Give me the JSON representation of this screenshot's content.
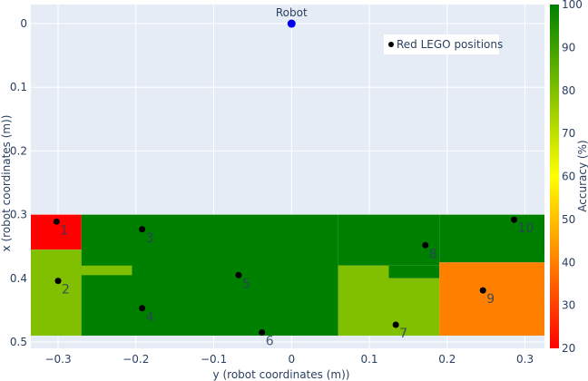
{
  "chart_data": {
    "type": "heatmap",
    "title": "",
    "xlabel": "y (robot coordinates (m))",
    "ylabel": "x (robot coordinates (m))",
    "xlim": [
      -0.335,
      0.325
    ],
    "ylim": [
      -0.03,
      0.51
    ],
    "y_reversed": true,
    "grid": true,
    "x_ticks": [
      -0.3,
      -0.2,
      -0.1,
      0,
      0.1,
      0.2,
      0.3
    ],
    "x_tick_labels": [
      "−0.3",
      "−0.2",
      "−0.1",
      "0",
      "0.1",
      "0.2",
      "0.3"
    ],
    "y_ticks": [
      0,
      0.1,
      0.2,
      0.3,
      0.4,
      0.5
    ],
    "y_tick_labels": [
      "0",
      "0.1",
      "0.2",
      "0.3",
      "0.4",
      "0.5"
    ],
    "colorbar": {
      "title": "Accuracy (%)",
      "min": 20,
      "max": 100,
      "ticks": [
        20,
        30,
        40,
        50,
        60,
        70,
        80,
        90,
        100
      ],
      "colors": [
        "#ff0000",
        "#ffff00",
        "#008000"
      ]
    },
    "regions": [
      {
        "y0": -0.335,
        "y1": -0.27,
        "x0": 0.3,
        "x1": 0.355,
        "accuracy": 20
      },
      {
        "y0": -0.335,
        "y1": -0.27,
        "x0": 0.355,
        "x1": 0.49,
        "accuracy": 80
      },
      {
        "y0": -0.27,
        "y1": 0.06,
        "x0": 0.3,
        "x1": 0.49,
        "accuracy": 100
      },
      {
        "y0": -0.27,
        "y1": -0.205,
        "x0": 0.38,
        "x1": 0.395,
        "accuracy": 80
      },
      {
        "y0": 0.06,
        "y1": 0.19,
        "x0": 0.3,
        "x1": 0.38,
        "accuracy": 100
      },
      {
        "y0": 0.06,
        "y1": 0.125,
        "x0": 0.38,
        "x1": 0.49,
        "accuracy": 80
      },
      {
        "y0": 0.125,
        "y1": 0.19,
        "x0": 0.38,
        "x1": 0.4,
        "accuracy": 100
      },
      {
        "y0": 0.125,
        "y1": 0.19,
        "x0": 0.4,
        "x1": 0.49,
        "accuracy": 80
      },
      {
        "y0": 0.19,
        "y1": 0.325,
        "x0": 0.3,
        "x1": 0.375,
        "accuracy": 100
      },
      {
        "y0": 0.19,
        "y1": 0.325,
        "x0": 0.375,
        "x1": 0.49,
        "accuracy": 40
      }
    ],
    "robot": {
      "name": "Robot",
      "y": 0.0,
      "x": 0.0,
      "color": "#0000ee"
    },
    "series": [
      {
        "name": "Red LEGO positions",
        "points": [
          {
            "label": "1",
            "y": -0.302,
            "x": 0.311
          },
          {
            "label": "2",
            "y": -0.3,
            "x": 0.404
          },
          {
            "label": "3",
            "y": -0.192,
            "x": 0.323
          },
          {
            "label": "4",
            "y": -0.192,
            "x": 0.447
          },
          {
            "label": "5",
            "y": -0.068,
            "x": 0.395
          },
          {
            "label": "6",
            "y": -0.038,
            "x": 0.485
          },
          {
            "label": "7",
            "y": 0.134,
            "x": 0.473
          },
          {
            "label": "8",
            "y": 0.172,
            "x": 0.348
          },
          {
            "label": "9",
            "y": 0.246,
            "x": 0.419
          },
          {
            "label": "10",
            "y": 0.286,
            "x": 0.308
          }
        ]
      }
    ]
  }
}
